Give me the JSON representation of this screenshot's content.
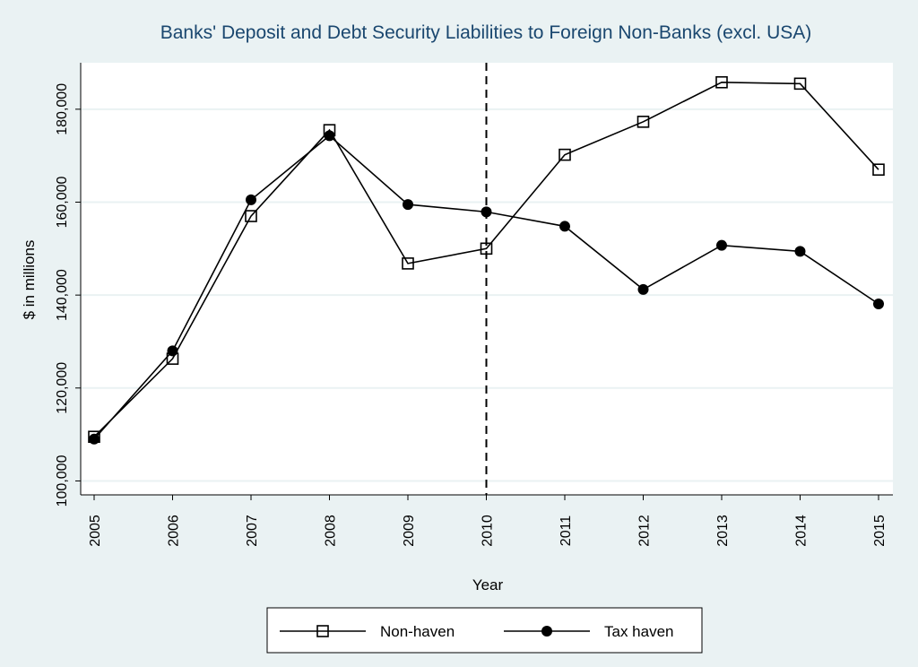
{
  "chart_data": {
    "type": "line",
    "title": "Banks' Deposit and Debt Security Liabilities to Foreign Non-Banks (excl. USA)",
    "xlabel": "Year",
    "ylabel": "$ in millions",
    "x": [
      2005,
      2006,
      2007,
      2008,
      2009,
      2010,
      2011,
      2012,
      2013,
      2014,
      2015
    ],
    "x_tick_labels": [
      "2005",
      "2006",
      "2007",
      "2008",
      "2009",
      "2010",
      "2011",
      "2012",
      "2013",
      "2014",
      "2015"
    ],
    "y_ticks": [
      100000,
      120000,
      140000,
      160000,
      180000
    ],
    "y_tick_labels": [
      "100,000",
      "120,000",
      "140,000",
      "160,000",
      "180,000"
    ],
    "xlim": [
      2005,
      2015
    ],
    "ylim": [
      97000,
      190000
    ],
    "grid": true,
    "vertical_reference_line": {
      "x": 2010,
      "style": "dashed"
    },
    "legend_position": "bottom",
    "series": [
      {
        "name": "Non-haven",
        "marker": "hollow-square",
        "values": [
          109500,
          126300,
          157000,
          175500,
          146800,
          150000,
          170200,
          177300,
          185800,
          185500,
          167000
        ]
      },
      {
        "name": "Tax haven",
        "marker": "filled-circle",
        "values": [
          109000,
          128000,
          160500,
          174300,
          159500,
          157900,
          154800,
          141200,
          150700,
          149400,
          138100
        ]
      }
    ],
    "colors": {
      "background": "#eaf2f3",
      "plot_background": "#ffffff",
      "title": "#1a476f",
      "grid": "#eaf2f3",
      "line": "#000000"
    }
  }
}
